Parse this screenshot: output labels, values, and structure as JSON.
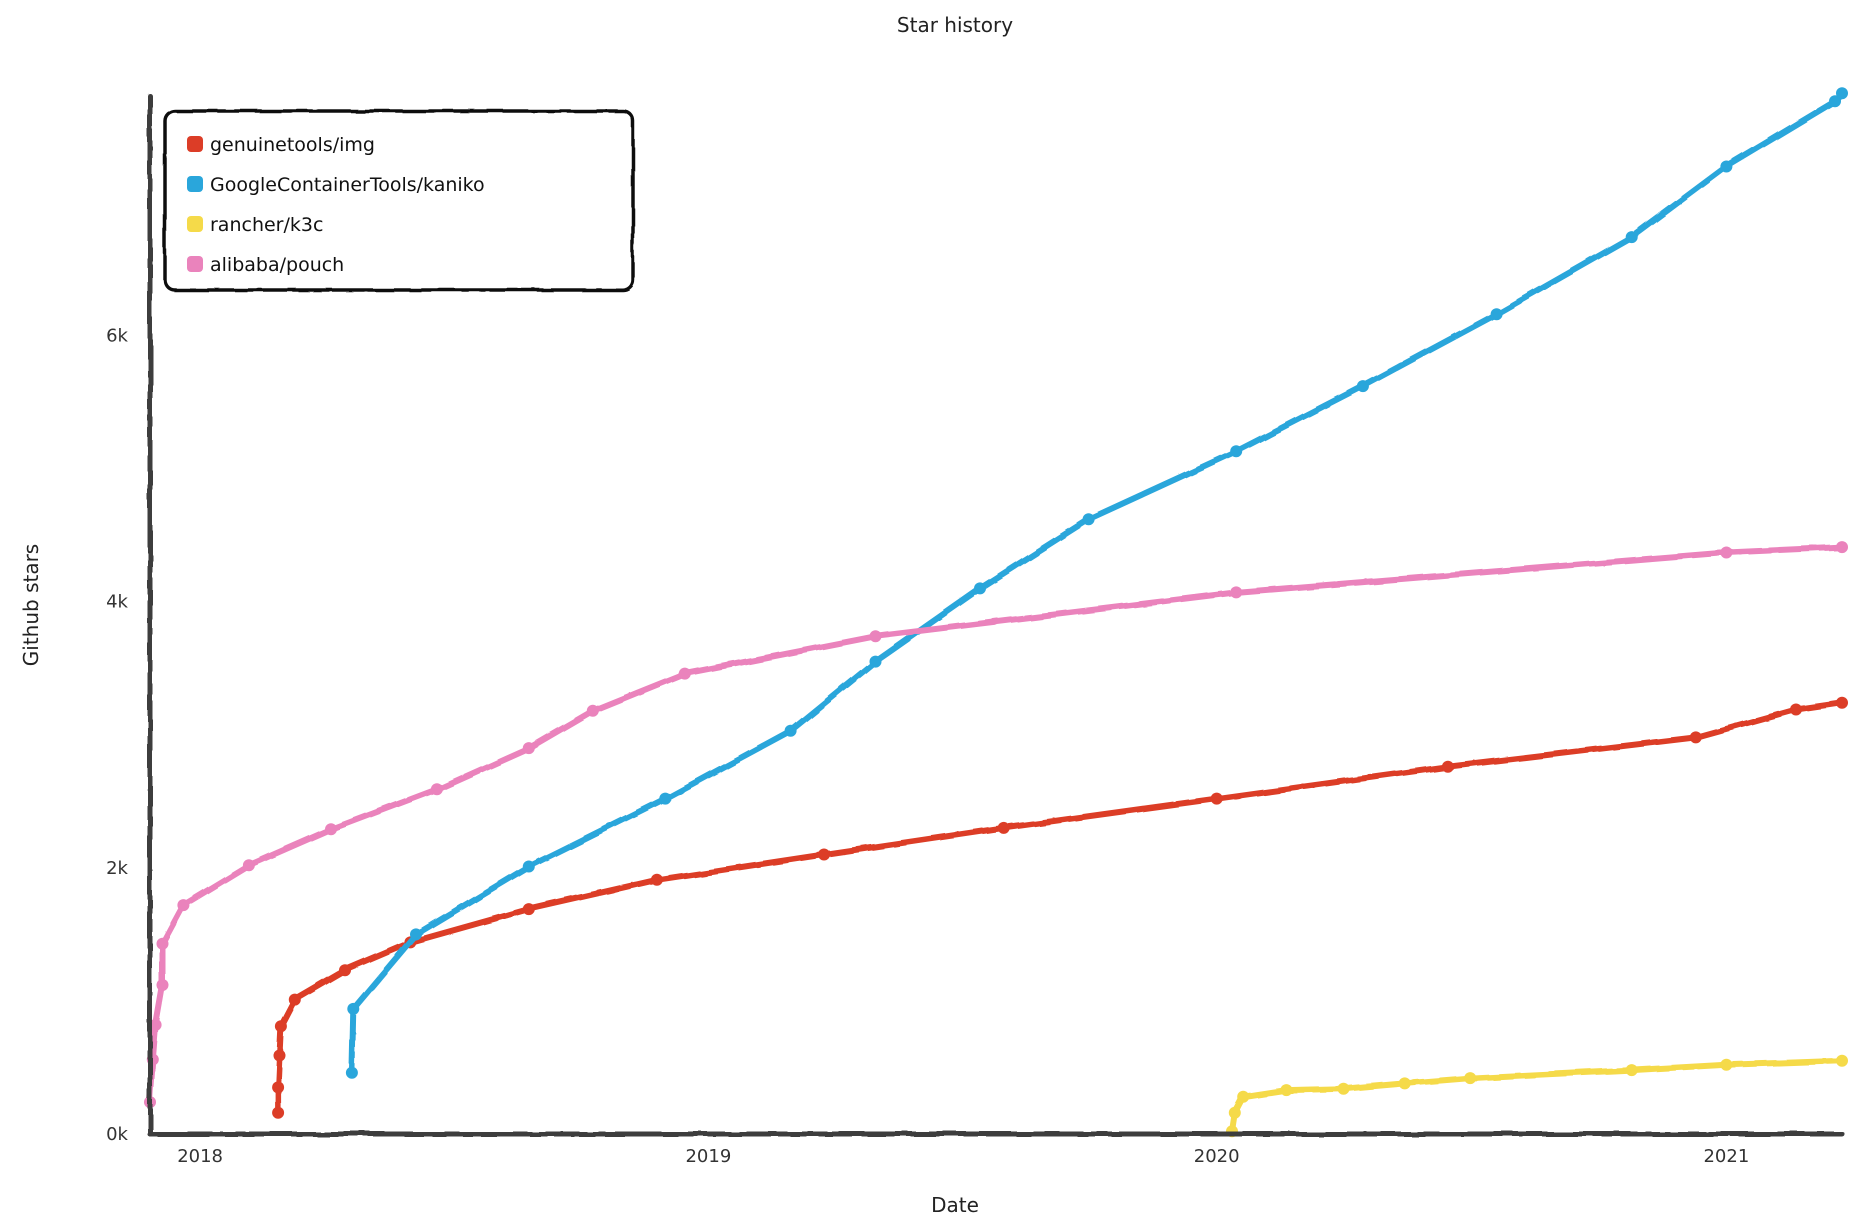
{
  "chart_data": {
    "type": "line",
    "title": "Star history",
    "xlabel": "Date",
    "ylabel": "Github stars",
    "x_ticks": [
      "2018",
      "2019",
      "2020",
      "2021"
    ],
    "x_tick_values": [
      "2018-01-01",
      "2019-01-01",
      "2020-01-01",
      "2021-01-01"
    ],
    "y_ticks": [
      "0k",
      "2k",
      "4k",
      "6k"
    ],
    "y_tick_values": [
      0,
      2000,
      4000,
      6000
    ],
    "xlim": [
      "2017-11-26",
      "2021-03-25"
    ],
    "ylim": [
      0,
      7800
    ],
    "legend_position": "top-left",
    "grid": false,
    "series": [
      {
        "name": "genuinetools/img",
        "color": "#dc3d27",
        "points": [
          [
            "2018-02-26",
            160
          ],
          [
            "2018-02-26",
            350
          ],
          [
            "2018-02-27",
            590
          ],
          [
            "2018-02-28",
            810
          ],
          [
            "2018-03-10",
            1010
          ],
          [
            "2018-04-15",
            1230
          ],
          [
            "2018-06-01",
            1440
          ],
          [
            "2018-08-25",
            1690
          ],
          [
            "2018-11-25",
            1910
          ],
          [
            "2019-03-25",
            2100
          ],
          [
            "2019-08-01",
            2300
          ],
          [
            "2020-01-01",
            2520
          ],
          [
            "2020-06-15",
            2760
          ],
          [
            "2020-12-10",
            2980
          ],
          [
            "2021-02-20",
            3190
          ],
          [
            "2021-03-25",
            3240
          ]
        ]
      },
      {
        "name": "GoogleContainerTools/kaniko",
        "color": "#2aa6db",
        "points": [
          [
            "2018-04-20",
            460
          ],
          [
            "2018-04-21",
            940
          ],
          [
            "2018-06-05",
            1500
          ],
          [
            "2018-08-25",
            2010
          ],
          [
            "2018-12-01",
            2520
          ],
          [
            "2019-03-01",
            3030
          ],
          [
            "2019-05-01",
            3550
          ],
          [
            "2019-07-15",
            4100
          ],
          [
            "2019-10-01",
            4620
          ],
          [
            "2020-01-15",
            5130
          ],
          [
            "2020-04-15",
            5620
          ],
          [
            "2020-07-20",
            6160
          ],
          [
            "2020-10-25",
            6740
          ],
          [
            "2021-01-01",
            7270
          ],
          [
            "2021-03-20",
            7760
          ],
          [
            "2021-03-25",
            7820
          ]
        ]
      },
      {
        "name": "rancher/k3c",
        "color": "#f5da49",
        "points": [
          [
            "2020-01-12",
            20
          ],
          [
            "2020-01-14",
            160
          ],
          [
            "2020-01-20",
            280
          ],
          [
            "2020-02-20",
            330
          ],
          [
            "2020-04-01",
            340
          ],
          [
            "2020-05-15",
            380
          ],
          [
            "2020-07-01",
            420
          ],
          [
            "2020-10-25",
            480
          ],
          [
            "2021-01-01",
            520
          ],
          [
            "2021-03-25",
            550
          ]
        ]
      },
      {
        "name": "alibaba/pouch",
        "color": "#ea83bc",
        "points": [
          [
            "2017-11-26",
            240
          ],
          [
            "2017-11-28",
            560
          ],
          [
            "2017-11-30",
            820
          ],
          [
            "2017-12-05",
            1120
          ],
          [
            "2017-12-05",
            1430
          ],
          [
            "2017-12-20",
            1720
          ],
          [
            "2018-02-05",
            2020
          ],
          [
            "2018-04-05",
            2290
          ],
          [
            "2018-06-20",
            2590
          ],
          [
            "2018-08-25",
            2900
          ],
          [
            "2018-10-10",
            3180
          ],
          [
            "2018-12-15",
            3460
          ],
          [
            "2019-05-01",
            3740
          ],
          [
            "2020-01-15",
            4070
          ],
          [
            "2021-01-01",
            4370
          ],
          [
            "2021-03-25",
            4410
          ]
        ]
      }
    ]
  }
}
